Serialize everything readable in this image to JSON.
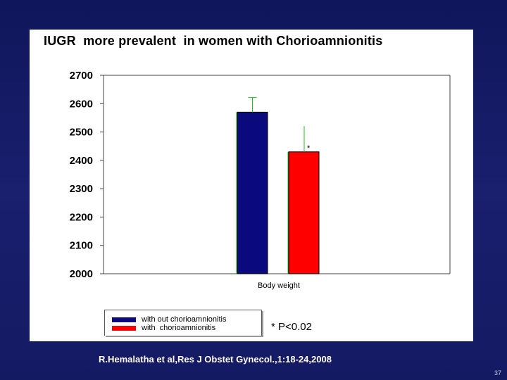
{
  "slide": {
    "citation": "R.Hemalatha et al,Res J Obstet Gynecol.,1:18-24,2008",
    "slide_number": "37"
  },
  "chart_data": {
    "type": "bar",
    "title": "IUGR  more prevalent  in women with Chorioamnionitis",
    "categories": [
      "Body weight"
    ],
    "series": [
      {
        "name": "with out chorioamnionitis",
        "values": [
          2570
        ],
        "error_upper": [
          2622
        ],
        "color": "#0a0a7e"
      },
      {
        "name": "with  chorioamnionitis",
        "values": [
          2430
        ],
        "error_upper": [
          2521
        ],
        "color": "#ff0000"
      }
    ],
    "xlabel": "",
    "ylabel": "",
    "ylim": [
      2000,
      2700
    ],
    "yticks": [
      "2000",
      "2100",
      "2200",
      "2300",
      "2400",
      "2500",
      "2600",
      "2700"
    ],
    "bar_annotation": "*",
    "significance_note": "* P<0.02",
    "grid": false,
    "legend_position": "bottom-left",
    "error_bar_color": "#22bb22"
  }
}
